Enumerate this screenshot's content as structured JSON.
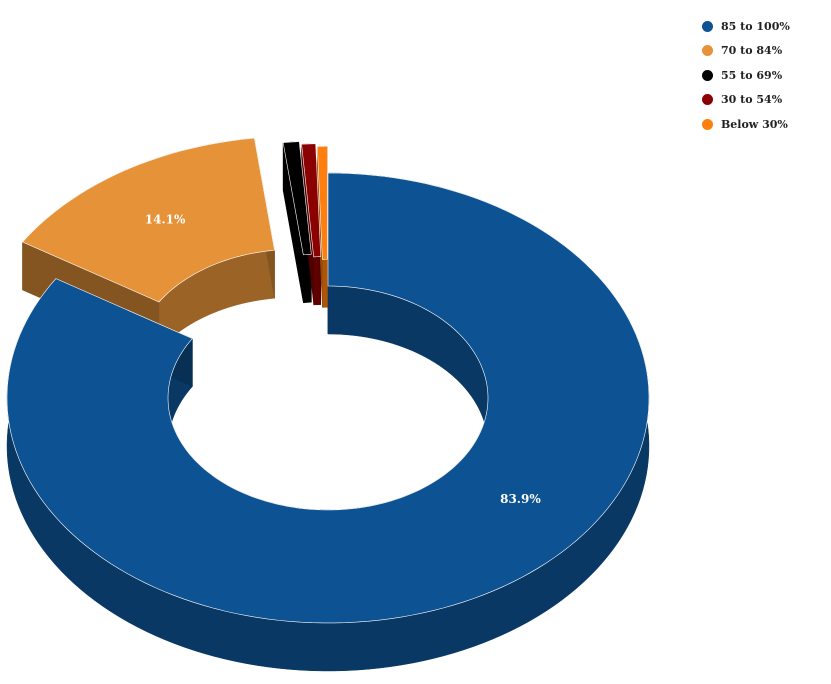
{
  "chart_data": {
    "type": "pie",
    "variant": "3d-donut-exploded",
    "title": "",
    "categories": [
      "85 to 100%",
      "70 to 84%",
      "55 to 69%",
      "30 to 54%",
      "Below 30%"
    ],
    "values": [
      83.9,
      14.1,
      0.8,
      0.7,
      0.5
    ],
    "value_labels": [
      "83.9%",
      "14.1%",
      "",
      "",
      ""
    ],
    "colors": [
      "#0d5293",
      "#e59239",
      "#000000",
      "#8b0000",
      "#ff7f0e"
    ],
    "legend_placement": "top-right"
  }
}
